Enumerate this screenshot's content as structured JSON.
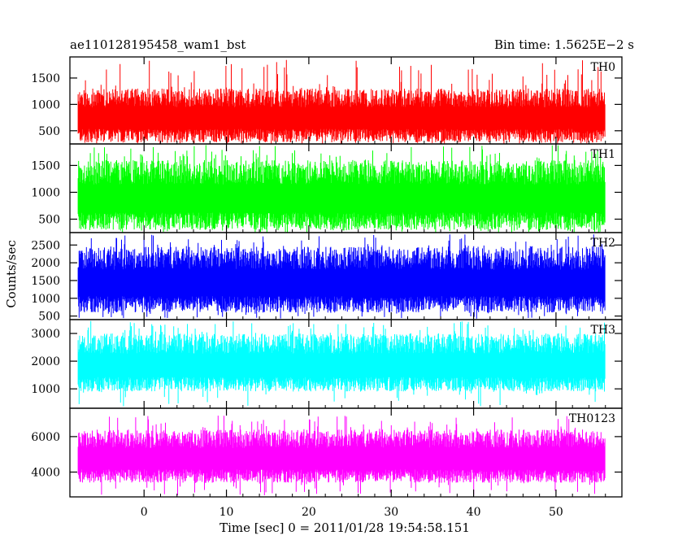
{
  "chart_data": {
    "type": "line",
    "title_left": "ae110128195458_wam1_bst",
    "title_right": "Bin time: 1.5625E−2 s",
    "xlabel": "Time [sec] 0 = 2011/01/28 19:54:58.151",
    "ylabel": "Counts/sec",
    "xlim": [
      -9,
      58
    ],
    "x_ticks": [
      0,
      10,
      20,
      30,
      40,
      50
    ],
    "x_range": [
      -8,
      56
    ],
    "grid": false,
    "panels": [
      {
        "name": "TH0",
        "color": "#ff0000",
        "ylim": [
          250,
          1900
        ],
        "yticks": [
          500,
          1000,
          1500
        ],
        "band": [
          280,
          1300
        ],
        "spike_max": 1850
      },
      {
        "name": "TH1",
        "color": "#00ff00",
        "ylim": [
          250,
          1900
        ],
        "yticks": [
          500,
          1000,
          1500
        ],
        "band": [
          300,
          1600
        ],
        "spike_max": 1880
      },
      {
        "name": "TH2",
        "color": "#0000ff",
        "ylim": [
          400,
          2850
        ],
        "yticks": [
          500,
          1000,
          1500,
          2000,
          2500
        ],
        "band": [
          600,
          2450
        ],
        "spike_max": 2800
      },
      {
        "name": "TH3",
        "color": "#00ffff",
        "ylim": [
          300,
          3500
        ],
        "yticks": [
          1000,
          2000,
          3000
        ],
        "band": [
          900,
          3000
        ],
        "spike_max": 3450
      },
      {
        "name": "TH0123",
        "color": "#ff00ff",
        "ylim": [
          2600,
          7600
        ],
        "yticks": [
          4000,
          6000
        ],
        "band": [
          3400,
          6400
        ],
        "spike_max": 7200
      }
    ]
  }
}
